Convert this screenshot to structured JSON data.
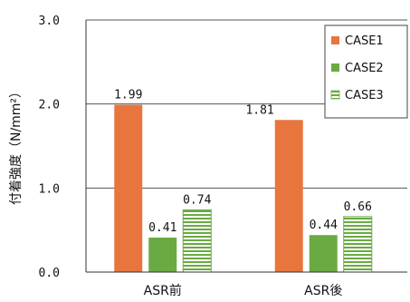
{
  "chart_data": {
    "type": "bar",
    "ylabel": "付着強度（N/mm²）",
    "ylim": [
      0,
      3
    ],
    "yticks": [
      "0.0",
      "1.0",
      "2.0",
      "3.0"
    ],
    "ytick_values": [
      0,
      1,
      2,
      3
    ],
    "categories": [
      "ASR前",
      "ASR後"
    ],
    "series": [
      {
        "name": "CASE1",
        "values": [
          1.99,
          1.81
        ],
        "labels": [
          "1.99",
          "1.81"
        ],
        "color": "#e8753e",
        "pattern": "solid"
      },
      {
        "name": "CASE2",
        "values": [
          0.41,
          0.44
        ],
        "labels": [
          "0.41",
          "0.44"
        ],
        "color": "#6aaa42",
        "pattern": "solid"
      },
      {
        "name": "CASE3",
        "values": [
          0.74,
          0.66
        ],
        "labels": [
          "0.74",
          "0.66"
        ],
        "color": "#6aaa42",
        "pattern": "horizontal-stripes"
      }
    ],
    "grid": true,
    "legend_position": "top-right"
  }
}
